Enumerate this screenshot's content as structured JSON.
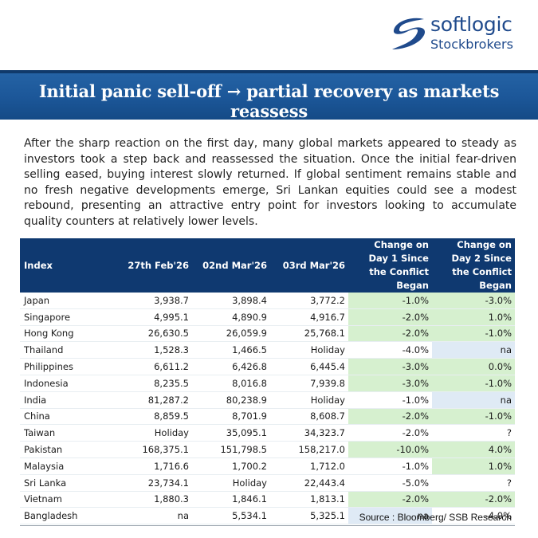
{
  "logo": {
    "name": "softlogic",
    "sub": "Stockbrokers"
  },
  "banner": {
    "title": "Initial panic sell-off → partial recovery as markets reassess"
  },
  "paragraph": "After the sharp reaction on the first day, many global markets appeared to steady as investors took a step back and reassessed the situation. Once the initial fear-driven selling eased, buying interest slowly returned. If global sentiment remains stable and no fresh negative developments emerge, Sri Lankan equities could see a modest rebound, presenting an attractive entry point for investors looking to accumulate quality counters at relatively lower levels.",
  "table": {
    "headers": [
      "Index",
      "27th Feb'26",
      "02nd Mar'26",
      "03rd Mar'26",
      "Change on Day 1 Since the Conflict Began",
      "Change on Day 2 Since the Conflict Began"
    ],
    "rows": [
      [
        "Japan",
        "3,938.7",
        "3,898.4",
        "3,772.2",
        "-1.0%",
        "-3.0%"
      ],
      [
        "Singapore",
        "4,995.1",
        "4,890.9",
        "4,916.7",
        "-2.0%",
        "1.0%"
      ],
      [
        "Hong Kong",
        "26,630.5",
        "26,059.9",
        "25,768.1",
        "-2.0%",
        "-1.0%"
      ],
      [
        "Thailand",
        "1,528.3",
        "1,466.5",
        "Holiday",
        "-4.0%",
        "na"
      ],
      [
        "Philippines",
        "6,611.2",
        "6,426.8",
        "6,445.4",
        "-3.0%",
        "0.0%"
      ],
      [
        "Indonesia",
        "8,235.5",
        "8,016.8",
        "7,939.8",
        "-3.0%",
        "-1.0%"
      ],
      [
        "India",
        "81,287.2",
        "80,238.9",
        "Holiday",
        "-1.0%",
        "na"
      ],
      [
        "China",
        "8,859.5",
        "8,701.9",
        "8,608.7",
        "-2.0%",
        "-1.0%"
      ],
      [
        "Taiwan",
        "Holiday",
        "35,095.1",
        "34,323.7",
        "-2.0%",
        "?"
      ],
      [
        "Pakistan",
        "168,375.1",
        "151,798.5",
        "158,217.0",
        "-10.0%",
        "4.0%"
      ],
      [
        "Malaysia",
        "1,716.6",
        "1,700.2",
        "1,712.0",
        "-1.0%",
        "1.0%"
      ],
      [
        "Sri Lanka",
        "23,734.1",
        "Holiday",
        "22,443.4",
        "-5.0%",
        "?"
      ],
      [
        "Vietnam",
        "1,880.3",
        "1,846.1",
        "1,813.1",
        "-2.0%",
        "-2.0%"
      ],
      [
        "Bangladesh",
        "na",
        "5,534.1",
        "5,325.1",
        "na",
        "-4.0%"
      ]
    ],
    "day1_shading": [
      "green",
      "green",
      "green",
      "none",
      "green",
      "green",
      "none",
      "green",
      "none",
      "green",
      "none",
      "none",
      "green",
      "blue"
    ],
    "day2_shading": [
      "green",
      "green",
      "green",
      "blue",
      "green",
      "green",
      "blue",
      "green",
      "none",
      "green",
      "green",
      "none",
      "green",
      "none"
    ]
  },
  "source": "Source : Bloomberg/ SSB Research",
  "colors": {
    "header_bg": "#0f3970",
    "banner_bg": "#1c5799",
    "green_cell": "#d6f0cf",
    "blue_cell": "#dfeaf5",
    "brand": "#1f4a8c"
  }
}
